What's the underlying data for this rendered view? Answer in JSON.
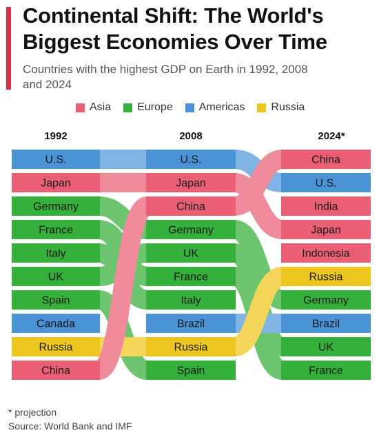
{
  "header": {
    "title": "Continental Shift: The World's Biggest Economies Over Time",
    "subtitle": "Countries with the highest GDP on Earth in 1992, 2008 and 2024"
  },
  "footer": {
    "note": "* projection",
    "source": "Source: World Bank and IMF"
  },
  "chart_data": {
    "type": "bump",
    "columns": [
      "1992",
      "2008",
      "2024*"
    ],
    "legend": [
      {
        "name": "Asia",
        "color": "#ea5f73"
      },
      {
        "name": "Europe",
        "color": "#35b03b"
      },
      {
        "name": "Americas",
        "color": "#4a93d7"
      },
      {
        "name": "Russia",
        "color": "#ecc61f"
      }
    ],
    "rankings": {
      "1992": [
        "U.S.",
        "Japan",
        "Germany",
        "France",
        "Italy",
        "UK",
        "Spain",
        "Canada",
        "Russia",
        "China"
      ],
      "2008": [
        "U.S.",
        "Japan",
        "China",
        "Germany",
        "UK",
        "France",
        "Italy",
        "Brazil",
        "Russia",
        "Spain"
      ],
      "2024*": [
        "China",
        "U.S.",
        "India",
        "Japan",
        "Indonesia",
        "Russia",
        "Germany",
        "Brazil",
        "UK",
        "France"
      ]
    },
    "regions": {
      "U.S.": "Americas",
      "Canada": "Americas",
      "Brazil": "Americas",
      "Japan": "Asia",
      "China": "Asia",
      "India": "Asia",
      "Indonesia": "Asia",
      "Germany": "Europe",
      "France": "Europe",
      "Italy": "Europe",
      "UK": "Europe",
      "Spain": "Europe",
      "Russia": "Russia"
    }
  }
}
